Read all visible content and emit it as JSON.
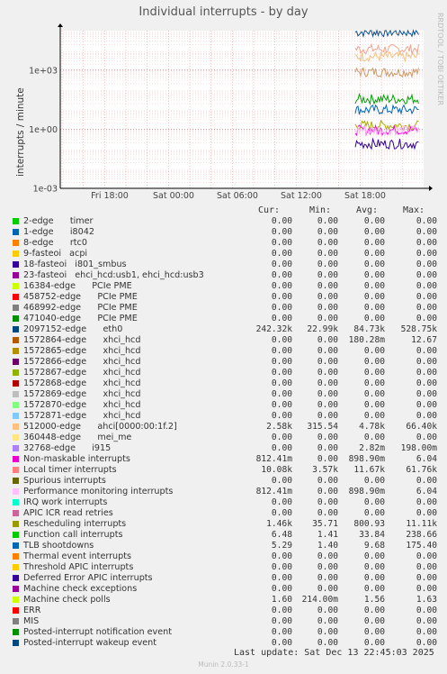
{
  "title": "Individual interrupts - by day",
  "side_label": "RRDTOOL / TOBI OETIKER",
  "ylabel": "interrupts / minute",
  "headers": {
    "cur": "Cur:",
    "min": "Min:",
    "avg": "Avg:",
    "max": "Max:"
  },
  "chart_data": {
    "type": "line",
    "title": "Individual interrupts - by day",
    "ylabel": "interrupts / minute",
    "yscale": "log",
    "ylim": [
      0.001,
      100000
    ],
    "yticks": [
      "1e-03",
      "1e+00",
      "1e+03"
    ],
    "xticks": [
      "Fri 18:00",
      "Sat 00:00",
      "Sat 06:00",
      "Sat 12:00",
      "Sat 18:00"
    ],
    "grid": true,
    "series_note": "data present only from ~Sat 17:00 to ~Sat 22:45",
    "series": [
      {
        "name": "2097152-edge eth0",
        "color": "#0c4e8e",
        "level": 84730
      },
      {
        "name": "Local timer interrupts",
        "color": "#f4a08b",
        "level": 11670
      },
      {
        "name": "Rescheduling interrupts",
        "color": "#cc9966",
        "level": 800.93
      },
      {
        "name": "512000-edge ahci",
        "color": "#f1c27d",
        "level": 4780
      },
      {
        "name": "Function call interrupts",
        "color": "#00a000",
        "level": 33.84
      },
      {
        "name": "TLB shootdowns",
        "color": "#0066b3",
        "level": 9.68
      },
      {
        "name": "Machine check polls",
        "color": "#aaaa00",
        "level": 1.56
      },
      {
        "name": "Non-maskable interrupts",
        "color": "#ff00dd",
        "level": 0.9
      },
      {
        "name": "Performance monitoring interrupts",
        "color": "#f5b8f5",
        "level": 0.9
      },
      {
        "name": "1572864-edge xhci_hcd",
        "color": "#330099",
        "level": 0.18
      }
    ]
  },
  "legend": [
    {
      "name": "2-edge      timer",
      "color": "#00cc00",
      "cur": "0.00",
      "min": "0.00",
      "avg": "0.00",
      "max": "0.00"
    },
    {
      "name": "1-edge      i8042",
      "color": "#0066b3",
      "cur": "0.00",
      "min": "0.00",
      "avg": "0.00",
      "max": "0.00"
    },
    {
      "name": "8-edge      rtc0",
      "color": "#ff8000",
      "cur": "0.00",
      "min": "0.00",
      "avg": "0.00",
      "max": "0.00"
    },
    {
      "name": "9-fasteoi   acpi",
      "color": "#ffcc00",
      "cur": "0.00",
      "min": "0.00",
      "avg": "0.00",
      "max": "0.00"
    },
    {
      "name": "18-fasteoi   i801_smbus",
      "color": "#330099",
      "cur": "0.00",
      "min": "0.00",
      "avg": "0.00",
      "max": "0.00"
    },
    {
      "name": "23-fasteoi   ehci_hcd:usb1, ehci_hcd:usb3",
      "color": "#990099",
      "cur": "0.00",
      "min": "0.00",
      "avg": "0.00",
      "max": "0.00"
    },
    {
      "name": "16384-edge      PCIe PME",
      "color": "#ccff00",
      "cur": "0.00",
      "min": "0.00",
      "avg": "0.00",
      "max": "0.00"
    },
    {
      "name": "458752-edge      PCIe PME",
      "color": "#ff0000",
      "cur": "0.00",
      "min": "0.00",
      "avg": "0.00",
      "max": "0.00"
    },
    {
      "name": "468992-edge      PCIe PME",
      "color": "#808080",
      "cur": "0.00",
      "min": "0.00",
      "avg": "0.00",
      "max": "0.00"
    },
    {
      "name": "471040-edge      PCIe PME",
      "color": "#008f00",
      "cur": "0.00",
      "min": "0.00",
      "avg": "0.00",
      "max": "0.00"
    },
    {
      "name": "2097152-edge      eth0",
      "color": "#00487d",
      "cur": "242.32k",
      "min": "22.99k",
      "avg": "84.73k",
      "max": "528.75k"
    },
    {
      "name": "1572864-edge      xhci_hcd",
      "color": "#b35a00",
      "cur": "0.00",
      "min": "0.00",
      "avg": "180.28m",
      "max": "12.67"
    },
    {
      "name": "1572865-edge      xhci_hcd",
      "color": "#b38f00",
      "cur": "0.00",
      "min": "0.00",
      "avg": "0.00",
      "max": "0.00"
    },
    {
      "name": "1572866-edge      xhci_hcd",
      "color": "#6b006b",
      "cur": "0.00",
      "min": "0.00",
      "avg": "0.00",
      "max": "0.00"
    },
    {
      "name": "1572867-edge      xhci_hcd",
      "color": "#8fb300",
      "cur": "0.00",
      "min": "0.00",
      "avg": "0.00",
      "max": "0.00"
    },
    {
      "name": "1572868-edge      xhci_hcd",
      "color": "#b30000",
      "cur": "0.00",
      "min": "0.00",
      "avg": "0.00",
      "max": "0.00"
    },
    {
      "name": "1572869-edge      xhci_hcd",
      "color": "#bebebe",
      "cur": "0.00",
      "min": "0.00",
      "avg": "0.00",
      "max": "0.00"
    },
    {
      "name": "1572870-edge      xhci_hcd",
      "color": "#80ff80",
      "cur": "0.00",
      "min": "0.00",
      "avg": "0.00",
      "max": "0.00"
    },
    {
      "name": "1572871-edge      xhci_hcd",
      "color": "#80c9ff",
      "cur": "0.00",
      "min": "0.00",
      "avg": "0.00",
      "max": "0.00"
    },
    {
      "name": "512000-edge      ahci[0000:00:1f.2]",
      "color": "#ffc080",
      "cur": "2.58k",
      "min": "315.54",
      "avg": "4.78k",
      "max": "66.40k"
    },
    {
      "name": "360448-edge      mei_me",
      "color": "#ffe680",
      "cur": "0.00",
      "min": "0.00",
      "avg": "0.00",
      "max": "0.00"
    },
    {
      "name": "32768-edge      i915",
      "color": "#aa80ff",
      "cur": "0.00",
      "min": "0.00",
      "avg": "2.82m",
      "max": "198.00m"
    },
    {
      "name": "Non-maskable interrupts",
      "color": "#ee00cc",
      "cur": "812.41m",
      "min": "0.00",
      "avg": "898.90m",
      "max": "6.04"
    },
    {
      "name": "Local timer interrupts",
      "color": "#ff8080",
      "cur": "10.08k",
      "min": "3.57k",
      "avg": "11.67k",
      "max": "61.76k"
    },
    {
      "name": "Spurious interrupts",
      "color": "#666600",
      "cur": "0.00",
      "min": "0.00",
      "avg": "0.00",
      "max": "0.00"
    },
    {
      "name": "Performance monitoring interrupts",
      "color": "#ffbfff",
      "cur": "812.41m",
      "min": "0.00",
      "avg": "898.90m",
      "max": "6.04"
    },
    {
      "name": "IRQ work interrupts",
      "color": "#00ffcc",
      "cur": "0.00",
      "min": "0.00",
      "avg": "0.00",
      "max": "0.00"
    },
    {
      "name": "APIC ICR read retries",
      "color": "#cc6699",
      "cur": "0.00",
      "min": "0.00",
      "avg": "0.00",
      "max": "0.00"
    },
    {
      "name": "Rescheduling interrupts",
      "color": "#999900",
      "cur": "1.46k",
      "min": "35.71",
      "avg": "800.93",
      "max": "11.11k"
    },
    {
      "name": "Function call interrupts",
      "color": "#00cc00",
      "cur": "6.48",
      "min": "1.41",
      "avg": "33.84",
      "max": "238.66"
    },
    {
      "name": "TLB shootdowns",
      "color": "#0066b3",
      "cur": "5.29",
      "min": "1.40",
      "avg": "9.68",
      "max": "175.40"
    },
    {
      "name": "Thermal event interrupts",
      "color": "#ff8000",
      "cur": "0.00",
      "min": "0.00",
      "avg": "0.00",
      "max": "0.00"
    },
    {
      "name": "Threshold APIC interrupts",
      "color": "#ffcc00",
      "cur": "0.00",
      "min": "0.00",
      "avg": "0.00",
      "max": "0.00"
    },
    {
      "name": "Deferred Error APIC interrupts",
      "color": "#330099",
      "cur": "0.00",
      "min": "0.00",
      "avg": "0.00",
      "max": "0.00"
    },
    {
      "name": "Machine check exceptions",
      "color": "#990099",
      "cur": "0.00",
      "min": "0.00",
      "avg": "0.00",
      "max": "0.00"
    },
    {
      "name": "Machine check polls",
      "color": "#ccff00",
      "cur": "1.60",
      "min": "214.00m",
      "avg": "1.56",
      "max": "1.63"
    },
    {
      "name": "ERR",
      "color": "#ff0000",
      "cur": "0.00",
      "min": "0.00",
      "avg": "0.00",
      "max": "0.00"
    },
    {
      "name": "MIS",
      "color": "#808080",
      "cur": "0.00",
      "min": "0.00",
      "avg": "0.00",
      "max": "0.00"
    },
    {
      "name": "Posted-interrupt notification event",
      "color": "#008f00",
      "cur": "0.00",
      "min": "0.00",
      "avg": "0.00",
      "max": "0.00"
    },
    {
      "name": "Posted-interrupt wakeup event",
      "color": "#00487d",
      "cur": "0.00",
      "min": "0.00",
      "avg": "0.00",
      "max": "0.00"
    }
  ],
  "last_update": "Last update:  Sat Dec 13 22:45:03 2025",
  "footer": "Munin 2.0.33-1"
}
